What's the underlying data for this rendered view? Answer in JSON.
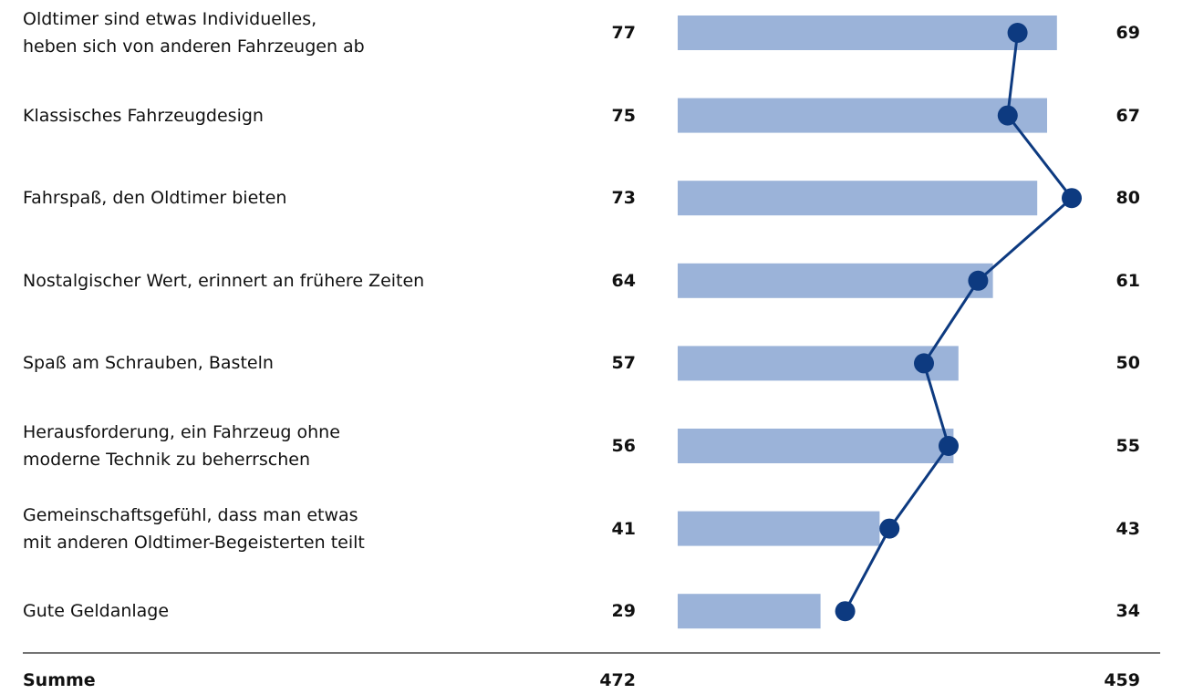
{
  "chart_data": {
    "type": "bar-line",
    "categories": [
      "Oldtimer sind etwas Individuelles,\nheben sich von anderen Fahrzeugen ab",
      "Klassisches Fahrzeugdesign",
      "Fahrspaß, den Oldtimer bieten",
      "Nostalgischer Wert, erinnert an frühere Zeiten",
      "Spaß am Schrauben, Basteln",
      "Herausforderung, ein Fahrzeug ohne\nmoderne Technik zu beherrschen",
      "Gemeinschaftsgefühl, dass man etwas\nmit anderen Oldtimer-Begeisterten teilt",
      "Gute Geldanlage"
    ],
    "series": [
      {
        "type": "bar",
        "color": "#9bb3d9",
        "values": [
          77,
          75,
          73,
          64,
          57,
          56,
          41,
          29
        ]
      },
      {
        "type": "line",
        "color": "#0d3a80",
        "values": [
          69,
          67,
          80,
          61,
          50,
          55,
          43,
          34
        ]
      }
    ],
    "xlim": [
      0,
      100
    ],
    "total_label": "Summe",
    "totals": [
      472,
      459
    ]
  }
}
